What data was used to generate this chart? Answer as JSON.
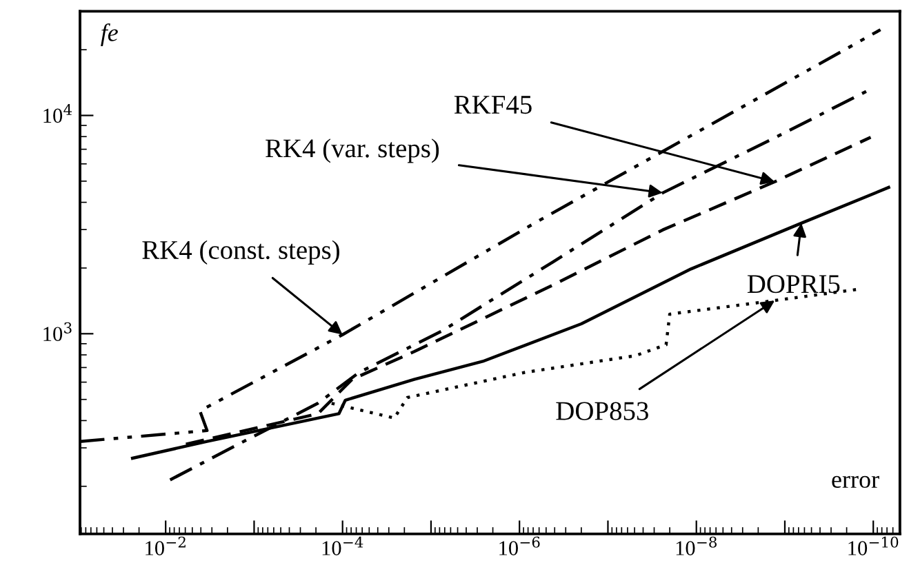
{
  "chart_data": {
    "type": "line",
    "xlabel": "error",
    "ylabel": "fe",
    "log": "xy",
    "xlim": [
      0.093,
      5e-11
    ],
    "ylim": [
      121,
      30000
    ],
    "xticks": [
      {
        "value": 0.01,
        "label": "10$^{−2}$"
      },
      {
        "value": 0.001,
        "label": null
      },
      {
        "value": 0.0001,
        "label": "10$^{−4}$"
      },
      {
        "value": 1e-05,
        "label": null
      },
      {
        "value": 1e-06,
        "label": "10$^{−6}$"
      },
      {
        "value": 1e-07,
        "label": null
      },
      {
        "value": 1e-08,
        "label": "10$^{−8}$"
      },
      {
        "value": 1e-09,
        "label": null
      },
      {
        "value": 1e-10,
        "label": "10$^{−10}$"
      }
    ],
    "yticks": [
      {
        "value": 1000,
        "label": "10$^{3}$"
      },
      {
        "value": 10000,
        "label": "10$^{4}$"
      }
    ],
    "grid": false,
    "legend": false,
    "marker": "none",
    "series": [
      {
        "color": "#000000",
        "line_style": "dashdotdot",
        "x": [
          0.093,
          0.0034,
          0.0041,
          0.0001,
          6e-07,
          8.3e-11
        ],
        "values": [
          321,
          360,
          443,
          990,
          3300,
          24700
        ]
      },
      {
        "color": "#000000",
        "line_style": "dashdot",
        "x": [
          0.0089,
          0.00115,
          0.00019,
          6.5e-05,
          7.5e-06,
          4.2e-07,
          2.4e-08,
          1.3e-09,
          1.07e-10
        ],
        "values": [
          214,
          330,
          480,
          665,
          1030,
          2130,
          4420,
          7900,
          13200
        ]
      },
      {
        "color": "#000000",
        "line_style": "dashed",
        "x": [
          0.0059,
          0.00019,
          7.8e-05,
          1.55e-05,
          4.2e-07,
          2.4e-08,
          1.3e-09,
          1.07e-10
        ],
        "values": [
          312,
          430,
          618,
          828,
          1670,
          2990,
          4970,
          7940
        ]
      },
      {
        "color": "#000000",
        "line_style": "solid",
        "x": [
          0.0237,
          0.0034,
          0.00011,
          9.3e-05,
          1.55e-05,
          2.6e-06,
          2e-07,
          1.15e-08,
          6.5e-10,
          6.7e-11
        ],
        "values": [
          269,
          321,
          430,
          496,
          618,
          747,
          1110,
          1980,
          3210,
          4680
        ]
      },
      {
        "color": "#000000",
        "line_style": "dotted",
        "x": [
          0.000133,
          2.6e-05,
          1.85e-05,
          8.7e-07,
          4.9e-08,
          2.2e-08,
          2e-08,
          1.3e-09,
          1.45e-10
        ],
        "values": [
          480,
          411,
          510,
          665,
          793,
          890,
          1230,
          1420,
          1600
        ]
      }
    ],
    "annotations": [
      {
        "text": "RK4 (const. steps)",
        "x": 0.0001,
        "y": 990
      },
      {
        "text": "RK4 (var. steps)",
        "x": 2.4e-08,
        "y": 4420
      },
      {
        "text": "RKF45",
        "x": 1.3e-09,
        "y": 4970
      },
      {
        "text": "DOPRI5",
        "x": 6.5e-10,
        "y": 3210
      },
      {
        "text": "DOP853",
        "x": 1.3e-09,
        "y": 1420
      }
    ]
  }
}
